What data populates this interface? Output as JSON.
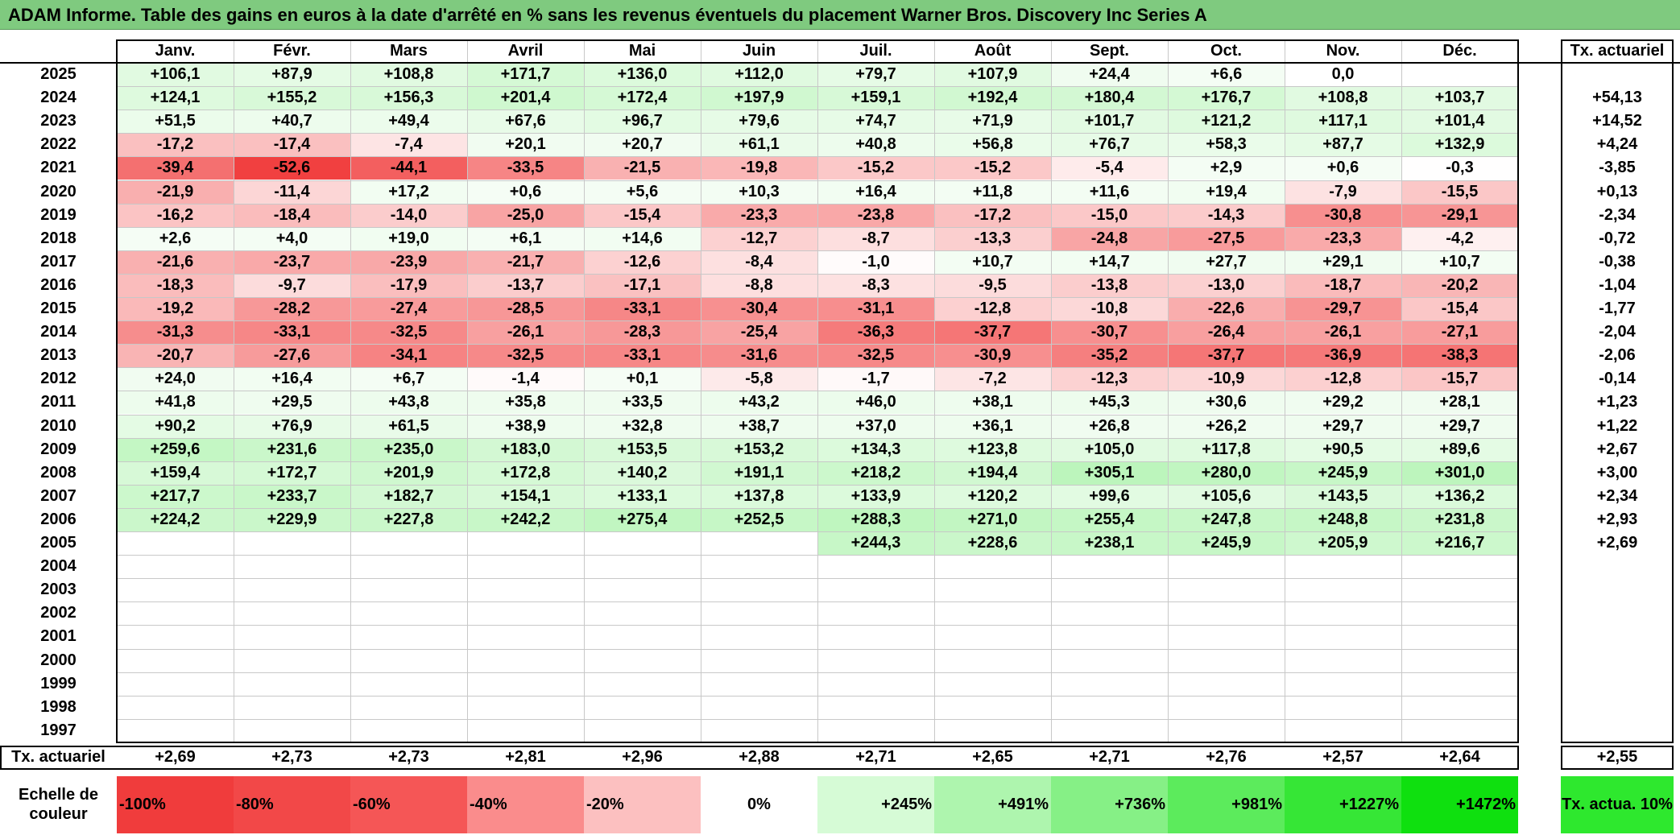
{
  "title": "ADAM Informe. Table des gains en euros à la date d'arrêté en % sans les revenus éventuels du placement Warner Bros. Discovery Inc Series A",
  "table": {
    "months": [
      "Janv.",
      "Févr.",
      "Mars",
      "Avril",
      "Mai",
      "Juin",
      "Juil.",
      "Août",
      "Sept.",
      "Oct.",
      "Nov.",
      "Déc."
    ],
    "rate_header": "Tx. actuariel",
    "rows": [
      {
        "year": "2025",
        "values": [
          "+106,1",
          "+87,9",
          "+108,8",
          "+171,7",
          "+136,0",
          "+112,0",
          "+79,7",
          "+107,9",
          "+24,4",
          "+6,6",
          "0,0",
          ""
        ],
        "rate": ""
      },
      {
        "year": "2024",
        "values": [
          "+124,1",
          "+155,2",
          "+156,3",
          "+201,4",
          "+172,4",
          "+197,9",
          "+159,1",
          "+192,4",
          "+180,4",
          "+176,7",
          "+108,8",
          "+103,7"
        ],
        "rate": "+54,13"
      },
      {
        "year": "2023",
        "values": [
          "+51,5",
          "+40,7",
          "+49,4",
          "+67,6",
          "+96,7",
          "+79,6",
          "+74,7",
          "+71,9",
          "+101,7",
          "+121,2",
          "+117,1",
          "+101,4"
        ],
        "rate": "+14,52"
      },
      {
        "year": "2022",
        "values": [
          "-17,2",
          "-17,4",
          "-7,4",
          "+20,1",
          "+20,7",
          "+61,1",
          "+40,8",
          "+56,8",
          "+76,7",
          "+58,3",
          "+87,7",
          "+132,9"
        ],
        "rate": "+4,24"
      },
      {
        "year": "2021",
        "values": [
          "-39,4",
          "-52,6",
          "-44,1",
          "-33,5",
          "-21,5",
          "-19,8",
          "-15,2",
          "-15,2",
          "-5,4",
          "+2,9",
          "+0,6",
          "-0,3"
        ],
        "rate": "-3,85"
      },
      {
        "year": "2020",
        "values": [
          "-21,9",
          "-11,4",
          "+17,2",
          "+0,6",
          "+5,6",
          "+10,3",
          "+16,4",
          "+11,8",
          "+11,6",
          "+19,4",
          "-7,9",
          "-15,5"
        ],
        "rate": "+0,13"
      },
      {
        "year": "2019",
        "values": [
          "-16,2",
          "-18,4",
          "-14,0",
          "-25,0",
          "-15,4",
          "-23,3",
          "-23,8",
          "-17,2",
          "-15,0",
          "-14,3",
          "-30,8",
          "-29,1"
        ],
        "rate": "-2,34"
      },
      {
        "year": "2018",
        "values": [
          "+2,6",
          "+4,0",
          "+19,0",
          "+6,1",
          "+14,6",
          "-12,7",
          "-8,7",
          "-13,3",
          "-24,8",
          "-27,5",
          "-23,3",
          "-4,2"
        ],
        "rate": "-0,72"
      },
      {
        "year": "2017",
        "values": [
          "-21,6",
          "-23,7",
          "-23,9",
          "-21,7",
          "-12,6",
          "-8,4",
          "-1,0",
          "+10,7",
          "+14,7",
          "+27,7",
          "+29,1",
          "+10,7"
        ],
        "rate": "-0,38"
      },
      {
        "year": "2016",
        "values": [
          "-18,3",
          "-9,7",
          "-17,9",
          "-13,7",
          "-17,1",
          "-8,8",
          "-8,3",
          "-9,5",
          "-13,8",
          "-13,0",
          "-18,7",
          "-20,2"
        ],
        "rate": "-1,04"
      },
      {
        "year": "2015",
        "values": [
          "-19,2",
          "-28,2",
          "-27,4",
          "-28,5",
          "-33,1",
          "-30,4",
          "-31,1",
          "-12,8",
          "-10,8",
          "-22,6",
          "-29,7",
          "-15,4"
        ],
        "rate": "-1,77"
      },
      {
        "year": "2014",
        "values": [
          "-31,3",
          "-33,1",
          "-32,5",
          "-26,1",
          "-28,3",
          "-25,4",
          "-36,3",
          "-37,7",
          "-30,7",
          "-26,4",
          "-26,1",
          "-27,1"
        ],
        "rate": "-2,04"
      },
      {
        "year": "2013",
        "values": [
          "-20,7",
          "-27,6",
          "-34,1",
          "-32,5",
          "-33,1",
          "-31,6",
          "-32,5",
          "-30,9",
          "-35,2",
          "-37,7",
          "-36,9",
          "-38,3"
        ],
        "rate": "-2,06"
      },
      {
        "year": "2012",
        "values": [
          "+24,0",
          "+16,4",
          "+6,7",
          "-1,4",
          "+0,1",
          "-5,8",
          "-1,7",
          "-7,2",
          "-12,3",
          "-10,9",
          "-12,8",
          "-15,7"
        ],
        "rate": "-0,14"
      },
      {
        "year": "2011",
        "values": [
          "+41,8",
          "+29,5",
          "+43,8",
          "+35,8",
          "+33,5",
          "+43,2",
          "+46,0",
          "+38,1",
          "+45,3",
          "+30,6",
          "+29,2",
          "+28,1"
        ],
        "rate": "+1,23"
      },
      {
        "year": "2010",
        "values": [
          "+90,2",
          "+76,9",
          "+61,5",
          "+38,9",
          "+32,8",
          "+38,7",
          "+37,0",
          "+36,1",
          "+26,8",
          "+26,2",
          "+29,7",
          "+29,7"
        ],
        "rate": "+1,22"
      },
      {
        "year": "2009",
        "values": [
          "+259,6",
          "+231,6",
          "+235,0",
          "+183,0",
          "+153,5",
          "+153,2",
          "+134,3",
          "+123,8",
          "+105,0",
          "+117,8",
          "+90,5",
          "+89,6"
        ],
        "rate": "+2,67"
      },
      {
        "year": "2008",
        "values": [
          "+159,4",
          "+172,7",
          "+201,9",
          "+172,8",
          "+140,2",
          "+191,1",
          "+218,2",
          "+194,4",
          "+305,1",
          "+280,0",
          "+245,9",
          "+301,0"
        ],
        "rate": "+3,00"
      },
      {
        "year": "2007",
        "values": [
          "+217,7",
          "+233,7",
          "+182,7",
          "+154,1",
          "+133,1",
          "+137,8",
          "+133,9",
          "+120,2",
          "+99,6",
          "+105,6",
          "+143,5",
          "+136,2"
        ],
        "rate": "+2,34"
      },
      {
        "year": "2006",
        "values": [
          "+224,2",
          "+229,9",
          "+227,8",
          "+242,2",
          "+275,4",
          "+252,5",
          "+288,3",
          "+271,0",
          "+255,4",
          "+247,8",
          "+248,8",
          "+231,8"
        ],
        "rate": "+2,93"
      },
      {
        "year": "2005",
        "values": [
          "",
          "",
          "",
          "",
          "",
          "",
          "+244,3",
          "+228,6",
          "+238,1",
          "+245,9",
          "+205,9",
          "+216,7"
        ],
        "rate": "+2,69"
      },
      {
        "year": "2004",
        "values": [
          "",
          "",
          "",
          "",
          "",
          "",
          "",
          "",
          "",
          "",
          "",
          ""
        ],
        "rate": ""
      },
      {
        "year": "2003",
        "values": [
          "",
          "",
          "",
          "",
          "",
          "",
          "",
          "",
          "",
          "",
          "",
          ""
        ],
        "rate": ""
      },
      {
        "year": "2002",
        "values": [
          "",
          "",
          "",
          "",
          "",
          "",
          "",
          "",
          "",
          "",
          "",
          ""
        ],
        "rate": ""
      },
      {
        "year": "2001",
        "values": [
          "",
          "",
          "",
          "",
          "",
          "",
          "",
          "",
          "",
          "",
          "",
          ""
        ],
        "rate": ""
      },
      {
        "year": "2000",
        "values": [
          "",
          "",
          "",
          "",
          "",
          "",
          "",
          "",
          "",
          "",
          "",
          ""
        ],
        "rate": ""
      },
      {
        "year": "1999",
        "values": [
          "",
          "",
          "",
          "",
          "",
          "",
          "",
          "",
          "",
          "",
          "",
          ""
        ],
        "rate": ""
      },
      {
        "year": "1998",
        "values": [
          "",
          "",
          "",
          "",
          "",
          "",
          "",
          "",
          "",
          "",
          "",
          ""
        ],
        "rate": ""
      },
      {
        "year": "1997",
        "values": [
          "",
          "",
          "",
          "",
          "",
          "",
          "",
          "",
          "",
          "",
          "",
          ""
        ],
        "rate": ""
      }
    ],
    "summary_label": "Tx. actuariel",
    "summary_values": [
      "+2,69",
      "+2,73",
      "+2,73",
      "+2,81",
      "+2,96",
      "+2,88",
      "+2,71",
      "+2,65",
      "+2,71",
      "+2,76",
      "+2,57",
      "+2,64"
    ],
    "summary_rate": "+2,55"
  },
  "scale": {
    "label": "Echelle de couleur",
    "items": [
      {
        "text": "-100%",
        "color": "#f03c3c",
        "align": "left"
      },
      {
        "text": "-80%",
        "color": "#f24848",
        "align": "left"
      },
      {
        "text": "-60%",
        "color": "#f55656",
        "align": "left"
      },
      {
        "text": "-40%",
        "color": "#fa8c8c",
        "align": "left"
      },
      {
        "text": "-20%",
        "color": "#fcc0c0",
        "align": "left"
      },
      {
        "text": "0%",
        "color": "#ffffff",
        "align": "center"
      },
      {
        "text": "+245%",
        "color": "#d6fbd6",
        "align": "right"
      },
      {
        "text": "+491%",
        "color": "#aef5ae",
        "align": "right"
      },
      {
        "text": "+736%",
        "color": "#86f086",
        "align": "right"
      },
      {
        "text": "+981%",
        "color": "#5ceb5c",
        "align": "right"
      },
      {
        "text": "+1227%",
        "color": "#36e636",
        "align": "right"
      },
      {
        "text": "+1472%",
        "color": "#0fe00f",
        "align": "right"
      }
    ],
    "rate_label": "Tx. actua. 10%",
    "rate_color": "#2ee82e"
  },
  "colors": {
    "title_bar": "#7fca7f",
    "negative_max": "#f03c3c",
    "positive_light": "#f3fdf3"
  }
}
